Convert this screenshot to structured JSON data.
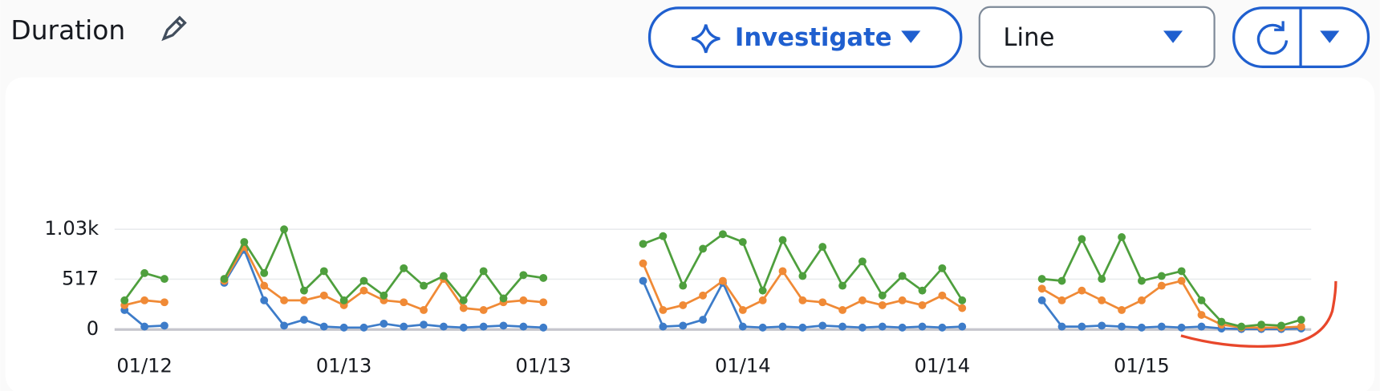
{
  "header": {
    "title": "Duration",
    "buttons": [
      "Investigate",
      "Line"
    ]
  },
  "chart_data": {
    "type": "line",
    "categories": [
      null,
      "01/12",
      null,
      null,
      null,
      null,
      null,
      null,
      null,
      null,
      null,
      "01/13",
      null,
      null,
      null,
      null,
      null,
      null,
      null,
      null,
      null,
      "01/13",
      null,
      null,
      null,
      null,
      null,
      null,
      null,
      null,
      null,
      "01/14",
      null,
      null,
      null,
      null,
      null,
      null,
      null,
      null,
      null,
      "01/14",
      null,
      null,
      null,
      null,
      null,
      null,
      null,
      null,
      null,
      "01/15",
      null,
      null,
      null,
      null,
      null,
      null,
      null,
      null
    ],
    "series": [
      {
        "color": "#3d7cc9",
        "values": [
          200,
          30,
          40,
          null,
          null,
          480,
          820,
          300,
          40,
          100,
          30,
          20,
          20,
          60,
          30,
          50,
          30,
          20,
          30,
          40,
          30,
          20,
          null,
          null,
          null,
          null,
          500,
          30,
          40,
          100,
          480,
          30,
          20,
          30,
          20,
          40,
          30,
          20,
          30,
          20,
          30,
          20,
          30,
          null,
          null,
          null,
          300,
          30,
          30,
          40,
          30,
          20,
          30,
          20,
          30,
          10,
          5,
          5,
          5,
          10
        ]
      },
      {
        "color": "#f08a36",
        "values": [
          250,
          300,
          280,
          null,
          null,
          500,
          850,
          450,
          300,
          300,
          350,
          250,
          400,
          300,
          280,
          200,
          520,
          220,
          200,
          280,
          300,
          280,
          null,
          null,
          null,
          null,
          680,
          200,
          250,
          350,
          500,
          200,
          300,
          600,
          300,
          280,
          200,
          300,
          250,
          300,
          250,
          350,
          220,
          null,
          null,
          null,
          420,
          300,
          400,
          300,
          200,
          300,
          450,
          500,
          150,
          50,
          20,
          20,
          20,
          30
        ]
      },
      {
        "color": "#4e9f3d",
        "values": [
          300,
          580,
          520,
          null,
          null,
          520,
          900,
          580,
          1030,
          400,
          600,
          300,
          500,
          350,
          630,
          450,
          550,
          300,
          600,
          320,
          560,
          530,
          null,
          null,
          null,
          null,
          880,
          960,
          450,
          830,
          980,
          900,
          400,
          920,
          550,
          850,
          450,
          700,
          350,
          550,
          400,
          630,
          300,
          null,
          null,
          null,
          520,
          500,
          930,
          520,
          950,
          500,
          550,
          600,
          300,
          80,
          30,
          50,
          40,
          100
        ]
      }
    ],
    "ylim": [
      0,
      1030
    ],
    "yticks": [
      0,
      517,
      {
        "value": 1030,
        "label": "1.03k"
      }
    ],
    "grid": true
  }
}
